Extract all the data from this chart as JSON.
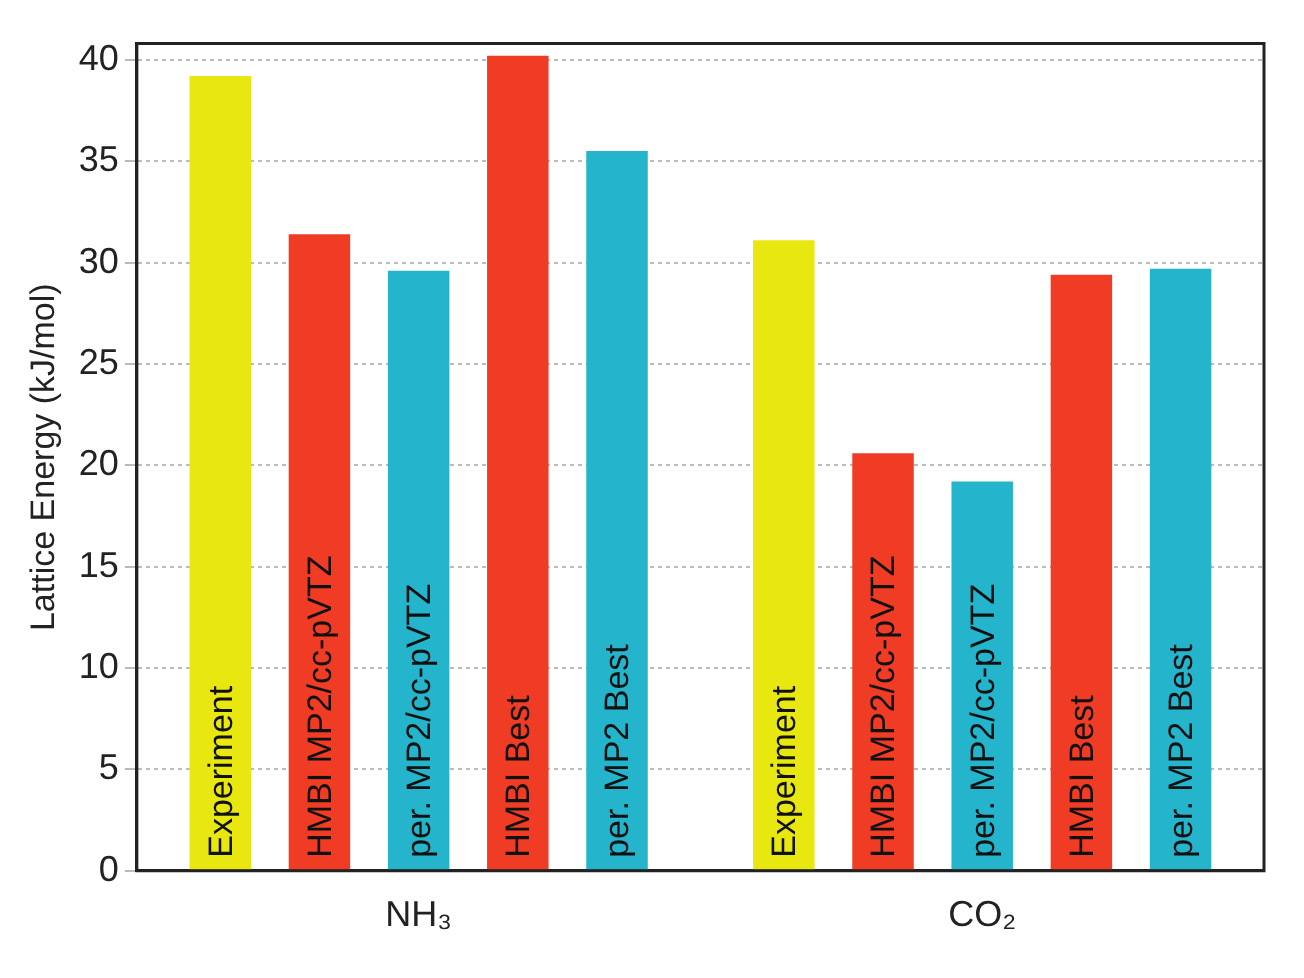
{
  "chart_data": {
    "type": "bar",
    "ylabel": "Lattice Energy (kJ/mol)",
    "categories": [
      "NH₃",
      "CO₂"
    ],
    "series": [
      {
        "name": "Experiment",
        "color": "#e8e810",
        "values": [
          39.2,
          31.1
        ]
      },
      {
        "name": "HMBI MP2/cc-pVTZ",
        "color": "#f03c24",
        "values": [
          31.4,
          20.6
        ]
      },
      {
        "name": "per. MP2/cc-pVTZ",
        "color": "#24b4cc",
        "values": [
          29.6,
          19.2
        ]
      },
      {
        "name": "HMBI Best",
        "color": "#f03c24",
        "values": [
          40.2,
          29.4
        ]
      },
      {
        "name": "per. MP2 Best",
        "color": "#24b4cc",
        "values": [
          35.5,
          29.7
        ]
      }
    ],
    "ylim": [
      0,
      40.8
    ],
    "yticks": [
      0,
      5,
      10,
      15,
      20,
      25,
      30,
      35,
      40
    ],
    "grid": "y"
  }
}
